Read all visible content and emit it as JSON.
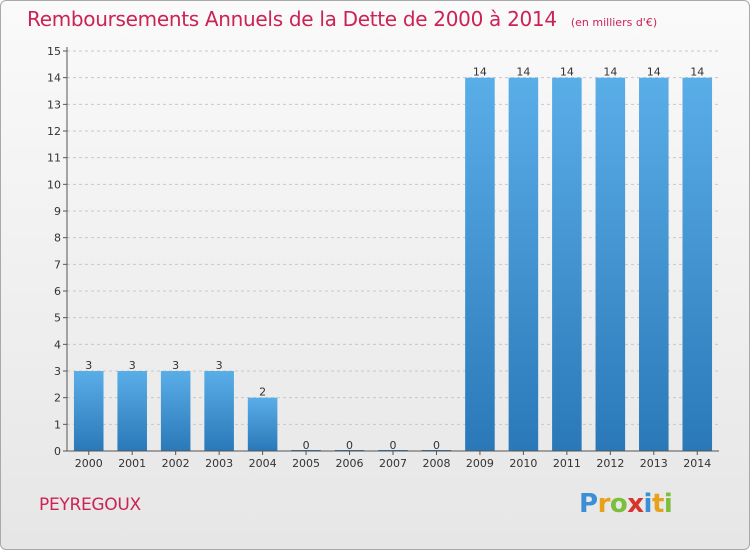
{
  "chart_data": {
    "type": "bar",
    "title": "Remboursements Annuels de la Dette de 2000 à 2014",
    "unit_label": "(en milliers d'€)",
    "categories": [
      "2000",
      "2001",
      "2002",
      "2003",
      "2004",
      "2005",
      "2006",
      "2007",
      "2008",
      "2009",
      "2010",
      "2011",
      "2012",
      "2013",
      "2014"
    ],
    "values": [
      3,
      3,
      3,
      3,
      2,
      0,
      0,
      0,
      0,
      14,
      14,
      14,
      14,
      14,
      14
    ],
    "data_labels": [
      "3",
      "3",
      "3",
      "3",
      "2",
      "0",
      "0",
      "0",
      "0",
      "14",
      "14",
      "14",
      "14",
      "14",
      "14"
    ],
    "ylim": [
      0,
      15
    ],
    "yticks": [
      "0",
      "1",
      "2",
      "3",
      "4",
      "5",
      "6",
      "7",
      "8",
      "9",
      "10",
      "11",
      "12",
      "13",
      "14",
      "15"
    ],
    "grid": "horizontal dashed",
    "bar_color_top": "#5aaee8",
    "bar_color_bottom": "#2a78b8"
  },
  "footer": {
    "commune": "PEYREGOUX",
    "logo_letters": [
      {
        "ch": "P",
        "color": "#3b8fd6"
      },
      {
        "ch": "r",
        "color": "#e8a21a"
      },
      {
        "ch": "o",
        "color": "#7bbf3a"
      },
      {
        "ch": "x",
        "color": "#d9342b"
      },
      {
        "ch": "i",
        "color": "#3b8fd6"
      },
      {
        "ch": "t",
        "color": "#e8a21a"
      },
      {
        "ch": "i",
        "color": "#7bbf3a"
      }
    ]
  }
}
